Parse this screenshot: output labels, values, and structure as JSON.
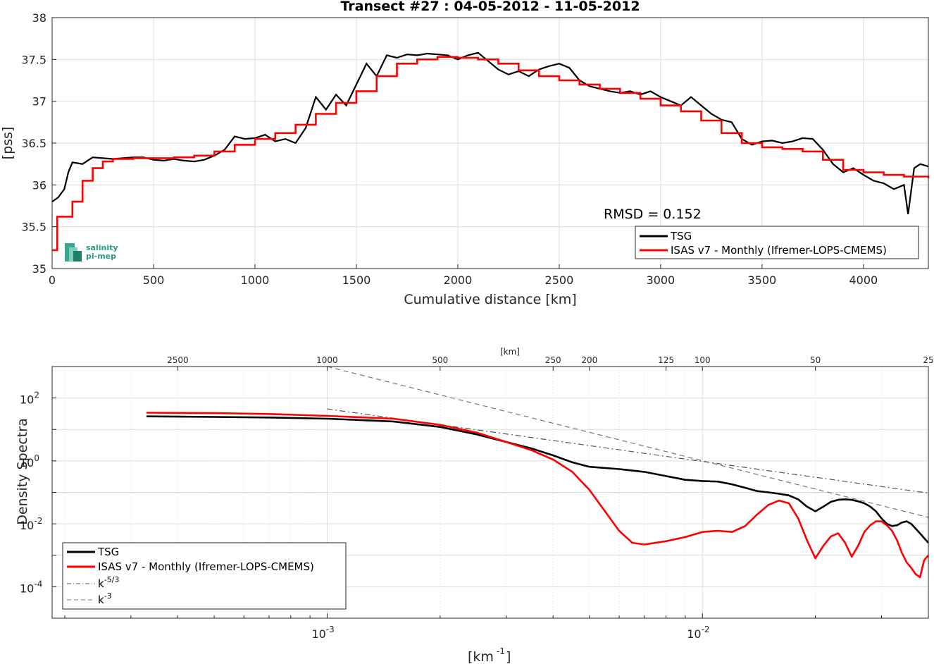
{
  "chart_data": [
    {
      "type": "line",
      "title": "Transect #27 : 04-05-2012 - 11-05-2012",
      "xlabel": "Cumulative distance [km]",
      "ylabel": "[pss]",
      "xlim": [
        0,
        4320
      ],
      "ylim": [
        35,
        38
      ],
      "xticks": [
        0,
        500,
        1000,
        1500,
        2000,
        2500,
        3000,
        3500,
        4000
      ],
      "yticks": [
        "35",
        "35.5",
        "36",
        "36.5",
        "37",
        "37.5",
        "38"
      ],
      "grid": true,
      "legend_position": "bottom-right",
      "annotation": "RMSD = 0.152",
      "logo": [
        "salinity",
        "pi-mep"
      ],
      "series": [
        {
          "name": "TSG",
          "color": "#000000",
          "x": [
            0,
            30,
            60,
            80,
            100,
            150,
            200,
            250,
            300,
            350,
            400,
            450,
            500,
            550,
            600,
            650,
            700,
            750,
            800,
            850,
            900,
            950,
            1000,
            1050,
            1100,
            1150,
            1200,
            1250,
            1300,
            1350,
            1400,
            1450,
            1500,
            1550,
            1600,
            1650,
            1700,
            1750,
            1800,
            1850,
            1900,
            1950,
            2000,
            2050,
            2100,
            2150,
            2200,
            2250,
            2300,
            2350,
            2400,
            2450,
            2500,
            2550,
            2600,
            2650,
            2700,
            2750,
            2800,
            2850,
            2900,
            2950,
            3000,
            3050,
            3100,
            3150,
            3200,
            3250,
            3300,
            3350,
            3400,
            3450,
            3500,
            3550,
            3600,
            3650,
            3700,
            3750,
            3800,
            3850,
            3900,
            3950,
            4000,
            4050,
            4100,
            4150,
            4200,
            4220,
            4250,
            4280,
            4320
          ],
          "y": [
            35.8,
            35.85,
            35.95,
            36.15,
            36.27,
            36.25,
            36.33,
            36.32,
            36.31,
            36.32,
            36.33,
            36.33,
            36.3,
            36.29,
            36.31,
            36.29,
            36.28,
            36.3,
            36.35,
            36.42,
            36.58,
            36.55,
            36.56,
            36.6,
            36.52,
            36.55,
            36.5,
            36.68,
            37.05,
            36.9,
            37.08,
            36.95,
            37.2,
            37.45,
            37.3,
            37.55,
            37.52,
            37.56,
            37.55,
            37.57,
            37.56,
            37.55,
            37.5,
            37.55,
            37.58,
            37.48,
            37.38,
            37.32,
            37.36,
            37.3,
            37.38,
            37.42,
            37.45,
            37.4,
            37.25,
            37.18,
            37.15,
            37.12,
            37.1,
            37.12,
            37.08,
            37.12,
            37.05,
            37.0,
            36.95,
            37.05,
            36.95,
            36.85,
            36.78,
            36.75,
            36.55,
            36.48,
            36.52,
            36.53,
            36.5,
            36.52,
            36.56,
            36.55,
            36.42,
            36.25,
            36.15,
            36.2,
            36.12,
            36.05,
            36.02,
            35.95,
            36.0,
            35.65,
            36.2,
            36.25,
            36.22
          ]
        },
        {
          "name": "ISAS v7 - Monthly (Ifremer-LOPS-CMEMS)",
          "color": "#ff0000",
          "x": [
            0,
            25,
            50,
            100,
            150,
            200,
            250,
            300,
            400,
            500,
            600,
            700,
            800,
            900,
            1000,
            1100,
            1200,
            1300,
            1400,
            1500,
            1600,
            1700,
            1800,
            1900,
            2000,
            2100,
            2200,
            2300,
            2400,
            2500,
            2600,
            2700,
            2800,
            2900,
            3000,
            3100,
            3200,
            3300,
            3400,
            3500,
            3600,
            3700,
            3800,
            3900,
            4000,
            4100,
            4200,
            4320
          ],
          "y": [
            35.22,
            35.62,
            35.62,
            35.8,
            36.05,
            36.2,
            36.28,
            36.31,
            36.32,
            36.32,
            36.33,
            36.35,
            36.4,
            36.48,
            36.55,
            36.62,
            36.72,
            36.85,
            36.98,
            37.12,
            37.3,
            37.45,
            37.5,
            37.53,
            37.52,
            37.5,
            37.45,
            37.37,
            37.3,
            37.25,
            37.2,
            37.15,
            37.1,
            37.03,
            36.95,
            36.88,
            36.77,
            36.62,
            36.5,
            36.45,
            36.43,
            36.4,
            36.3,
            36.18,
            36.15,
            36.12,
            36.1,
            36.08
          ]
        }
      ]
    },
    {
      "type": "line",
      "xlabel": "[km-1]",
      "ylabel": "Density Spectra",
      "top_axis_label": "[km]",
      "xlim": [
        0.000185,
        0.04
      ],
      "ylim": [
        1e-05,
        1000
      ],
      "x_log": true,
      "y_log": true,
      "xticks": [
        {
          "base": "10",
          "exp": "-3",
          "value": 0.001
        },
        {
          "base": "10",
          "exp": "-2",
          "value": 0.01
        }
      ],
      "yticks": [
        {
          "base": "10",
          "exp": "2",
          "value": 100
        },
        {
          "base": "10",
          "exp": "0",
          "value": 1
        },
        {
          "base": "10",
          "exp": "-2",
          "value": 0.01
        },
        {
          "base": "10",
          "exp": "-4",
          "value": 0.0001
        }
      ],
      "top_ticks": [
        "2500",
        "1000",
        "500",
        "250",
        "200",
        "125",
        "100",
        "50",
        "25"
      ],
      "top_tick_values_km": [
        2500,
        1000,
        500,
        250,
        200,
        125,
        100,
        50,
        25
      ],
      "grid": true,
      "legend_position": "bottom-left",
      "series": [
        {
          "name": "TSG",
          "color": "#000000",
          "x": [
            0.00033,
            0.0005,
            0.0007,
            0.001,
            0.0015,
            0.002,
            0.0025,
            0.003,
            0.0035,
            0.004,
            0.0045,
            0.005,
            0.006,
            0.007,
            0.008,
            0.009,
            0.01,
            0.011,
            0.012,
            0.013,
            0.014,
            0.015,
            0.016,
            0.017,
            0.018,
            0.019,
            0.02,
            0.021,
            0.022,
            0.023,
            0.024,
            0.025,
            0.026,
            0.027,
            0.028,
            0.029,
            0.03,
            0.031,
            0.032,
            0.033,
            0.034,
            0.035,
            0.036,
            0.037,
            0.038,
            0.039,
            0.04
          ],
          "y": [
            26,
            25,
            24,
            22,
            18,
            12,
            7,
            4,
            2.5,
            1.5,
            0.9,
            0.65,
            0.55,
            0.45,
            0.33,
            0.25,
            0.23,
            0.22,
            0.18,
            0.14,
            0.11,
            0.1,
            0.09,
            0.08,
            0.06,
            0.035,
            0.025,
            0.035,
            0.05,
            0.058,
            0.06,
            0.058,
            0.052,
            0.045,
            0.035,
            0.025,
            0.015,
            0.01,
            0.0085,
            0.009,
            0.011,
            0.012,
            0.01,
            0.007,
            0.005,
            0.0035,
            0.0025
          ]
        },
        {
          "name": "ISAS v7 - Monthly (Ifremer-LOPS-CMEMS)",
          "color": "#ff0000",
          "x": [
            0.00033,
            0.0005,
            0.0007,
            0.001,
            0.0015,
            0.002,
            0.0025,
            0.003,
            0.0035,
            0.004,
            0.0045,
            0.005,
            0.0055,
            0.006,
            0.0065,
            0.007,
            0.008,
            0.009,
            0.01,
            0.011,
            0.012,
            0.013,
            0.014,
            0.015,
            0.016,
            0.017,
            0.018,
            0.019,
            0.02,
            0.021,
            0.022,
            0.023,
            0.024,
            0.025,
            0.026,
            0.027,
            0.028,
            0.029,
            0.03,
            0.031,
            0.032,
            0.033,
            0.034,
            0.035,
            0.036,
            0.037,
            0.038,
            0.039,
            0.04
          ],
          "y": [
            34,
            33,
            31,
            27,
            22,
            14,
            8,
            4,
            2.2,
            1.1,
            0.45,
            0.12,
            0.025,
            0.006,
            0.0025,
            0.0022,
            0.0028,
            0.0038,
            0.0055,
            0.006,
            0.0055,
            0.0085,
            0.02,
            0.04,
            0.055,
            0.045,
            0.015,
            0.003,
            0.0008,
            0.002,
            0.004,
            0.005,
            0.0025,
            0.0009,
            0.002,
            0.0055,
            0.009,
            0.012,
            0.012,
            0.009,
            0.006,
            0.003,
            0.0012,
            0.0006,
            0.0004,
            0.00025,
            0.0002,
            0.0007,
            0.001
          ]
        },
        {
          "name": "k-5/3",
          "name_base": "k",
          "name_exp": "-5/3",
          "color": "#555555",
          "dash": "dash-dot",
          "x": [
            0.001,
            0.04
          ],
          "y": [
            45,
            0.095
          ]
        },
        {
          "name": "k-3",
          "name_base": "k",
          "name_exp": "-3",
          "color": "#777777",
          "dash": "dashed",
          "x": [
            0.001,
            0.04
          ],
          "y": [
            1000,
            0.016
          ]
        }
      ]
    }
  ]
}
